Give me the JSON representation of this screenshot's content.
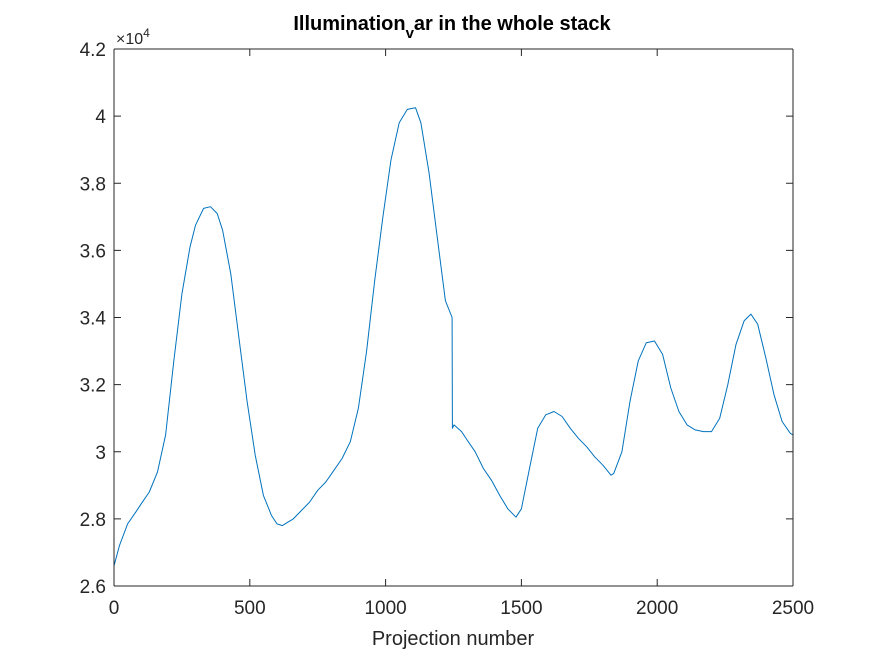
{
  "chart_data": {
    "type": "line",
    "title": {
      "main": "Illumination",
      "sub": "v",
      "rest": "ar in the whole stack"
    },
    "xlabel": "Projection number",
    "ylabel": "",
    "xlim": [
      0,
      2500
    ],
    "ylim": [
      26000,
      42000
    ],
    "xticks": [
      0,
      500,
      1000,
      1500,
      2000,
      2500
    ],
    "yticks": [
      26000,
      28000,
      30000,
      32000,
      34000,
      36000,
      38000,
      40000,
      42000
    ],
    "ytick_labels": [
      "2.6",
      "2.8",
      "3",
      "3.2",
      "3.4",
      "3.6",
      "3.8",
      "4",
      "4.2"
    ],
    "y_exponent": {
      "base": "×10",
      "power": "4"
    },
    "grid": false,
    "line_color": "#0072BD",
    "series": [
      {
        "x": [
          0,
          20,
          50,
          80,
          100,
          130,
          160,
          190,
          220,
          250,
          280,
          300,
          330,
          355,
          380,
          400,
          430,
          460,
          490,
          520,
          550,
          580,
          600,
          620,
          640,
          660,
          690,
          720,
          750,
          780,
          810,
          840,
          870,
          900,
          930,
          960,
          990,
          1020,
          1050,
          1080,
          1110,
          1130,
          1160,
          1190,
          1220,
          1245,
          1246,
          1252,
          1280,
          1300,
          1330,
          1360,
          1390,
          1420,
          1450,
          1480,
          1500,
          1530,
          1560,
          1590,
          1620,
          1650,
          1680,
          1710,
          1740,
          1770,
          1800,
          1830,
          1840,
          1870,
          1900,
          1930,
          1960,
          1990,
          2020,
          2050,
          2080,
          2110,
          2140,
          2170,
          2200,
          2230,
          2260,
          2290,
          2320,
          2345,
          2370,
          2400,
          2430,
          2460,
          2490,
          2500
        ],
        "y": [
          26600,
          27200,
          27850,
          28200,
          28450,
          28800,
          29400,
          30500,
          32700,
          34700,
          36100,
          36750,
          37250,
          37300,
          37100,
          36600,
          35300,
          33400,
          31500,
          29900,
          28700,
          28100,
          27850,
          27800,
          27900,
          28000,
          28250,
          28500,
          28850,
          29100,
          29450,
          29800,
          30300,
          31300,
          33000,
          35100,
          37000,
          38700,
          39800,
          40200,
          40250,
          39800,
          38300,
          36400,
          34500,
          34000,
          30700,
          30800,
          30600,
          30350,
          30000,
          29500,
          29150,
          28700,
          28300,
          28050,
          28300,
          29500,
          30700,
          31100,
          31200,
          31050,
          30700,
          30400,
          30150,
          29850,
          29600,
          29300,
          29350,
          30000,
          31500,
          32700,
          33250,
          33300,
          32900,
          31900,
          31200,
          30800,
          30650,
          30600,
          30600,
          31000,
          32000,
          33200,
          33900,
          34100,
          33800,
          32800,
          31700,
          30900,
          30550,
          30500
        ]
      }
    ]
  }
}
